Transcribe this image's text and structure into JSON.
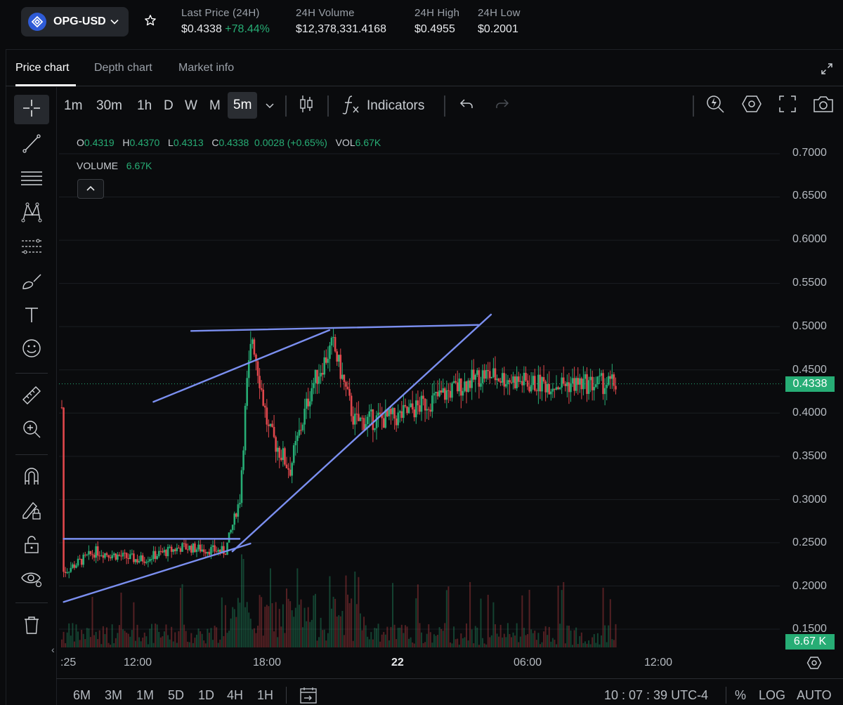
{
  "header": {
    "pair": "OPG-USD",
    "stats": [
      {
        "label": "Last Price (24H)",
        "value": "$0.4338",
        "change": "+78.44%"
      },
      {
        "label": "24H Volume",
        "value": "$12,378,331.4168"
      },
      {
        "label": "24H High",
        "value": "$0.4955"
      },
      {
        "label": "24H Low",
        "value": "$0.2001"
      }
    ]
  },
  "tabs": [
    "Price chart",
    "Depth chart",
    "Market info"
  ],
  "toolbar": {
    "intervals": [
      "1m",
      "30m",
      "1h",
      "D",
      "W",
      "M"
    ],
    "selected_interval": "5m",
    "indicators_label": "Indicators"
  },
  "left_tools": [
    "crosshair-icon",
    "trendline-icon",
    "horizontal-lines-icon",
    "pattern-icon",
    "fib-icon",
    "brush-icon",
    "text-icon",
    "emoji-icon",
    "ruler-icon",
    "zoom-in-icon",
    "magnet-icon",
    "lock-pencil-icon",
    "unlock-icon",
    "eye-icon",
    "trash-icon"
  ],
  "legend": {
    "o_label": "O",
    "o": "0.4319",
    "h_label": "H",
    "h": "0.4370",
    "l_label": "L",
    "l": "0.4313",
    "c_label": "C",
    "c": "0.4338",
    "change": "0.0028 (+0.65%)",
    "vol_label": "VOL",
    "vol": "6.67K",
    "volume_label": "VOLUME",
    "volume": "6.67K"
  },
  "price_axis": [
    "0.7000",
    "0.6500",
    "0.6000",
    "0.5500",
    "0.5000",
    "0.4500",
    "0.4000",
    "0.3500",
    "0.3000",
    "0.2500",
    "0.2000",
    "0.1500"
  ],
  "current_price_tag": "0.4338",
  "volume_tag": "6.67 K",
  "time_axis": [
    ":25",
    "12:00",
    "18:00",
    "22",
    "06:00",
    "12:00"
  ],
  "bottom_bar": {
    "ranges": [
      "6M",
      "3M",
      "1M",
      "5D",
      "1D",
      "4H",
      "1H"
    ],
    "clock": "10 : 07 : 39 UTC-4",
    "percent": "%",
    "log": "LOG",
    "auto": "AUTO"
  },
  "colors": {
    "up": "#27ad75",
    "down": "#e0474c",
    "trendline": "#7b8ff0",
    "accent": "#2e5bd6"
  },
  "chart_data": {
    "type": "candlestick",
    "interval": "5m",
    "ylim": [
      0.14,
      0.72
    ],
    "grid": true,
    "price_ticks": [
      0.7,
      0.65,
      0.6,
      0.55,
      0.5,
      0.45,
      0.4,
      0.35,
      0.3,
      0.25,
      0.2,
      0.15
    ],
    "time_ticks": [
      ":25",
      "12:00",
      "18:00",
      "22",
      "06:00",
      "12:00"
    ],
    "path_close": [
      {
        "t": "08:25",
        "p": 0.215
      },
      {
        "t": "10:00",
        "p": 0.24
      },
      {
        "t": "12:00",
        "p": 0.23
      },
      {
        "t": "14:00",
        "p": 0.245
      },
      {
        "t": "16:00",
        "p": 0.24
      },
      {
        "t": "16:40",
        "p": 0.3
      },
      {
        "t": "17:00",
        "p": 0.43
      },
      {
        "t": "17:15",
        "p": 0.49
      },
      {
        "t": "18:00",
        "p": 0.38
      },
      {
        "t": "19:00",
        "p": 0.335
      },
      {
        "t": "20:00",
        "p": 0.43
      },
      {
        "t": "21:00",
        "p": 0.48
      },
      {
        "t": "22:00",
        "p": 0.39
      },
      {
        "t": "00:00",
        "p": 0.395
      },
      {
        "t": "02:00",
        "p": 0.42
      },
      {
        "t": "04:00",
        "p": 0.445
      },
      {
        "t": "06:00",
        "p": 0.435
      },
      {
        "t": "08:00",
        "p": 0.4
      },
      {
        "t": "10:07",
        "p": 0.4338
      }
    ],
    "last_price": 0.4338,
    "last_volume": "6.67K",
    "drawings": [
      {
        "kind": "trendline",
        "from": [
          "08:30",
          0.2545
        ],
        "to": [
          "16:40",
          0.2545
        ]
      },
      {
        "kind": "trendline",
        "from": [
          "08:30",
          0.1815
        ],
        "to": [
          "17:10",
          0.249
        ]
      },
      {
        "kind": "trendline",
        "from": [
          "16:20",
          0.24
        ],
        "to": [
          "04:20",
          0.514
        ]
      },
      {
        "kind": "trendline",
        "from": [
          "14:25",
          0.495
        ],
        "to": [
          "03:45",
          0.502
        ]
      },
      {
        "kind": "trendline",
        "from": [
          "20:50",
          0.496
        ],
        "to": [
          "12:40",
          0.413
        ]
      }
    ]
  }
}
